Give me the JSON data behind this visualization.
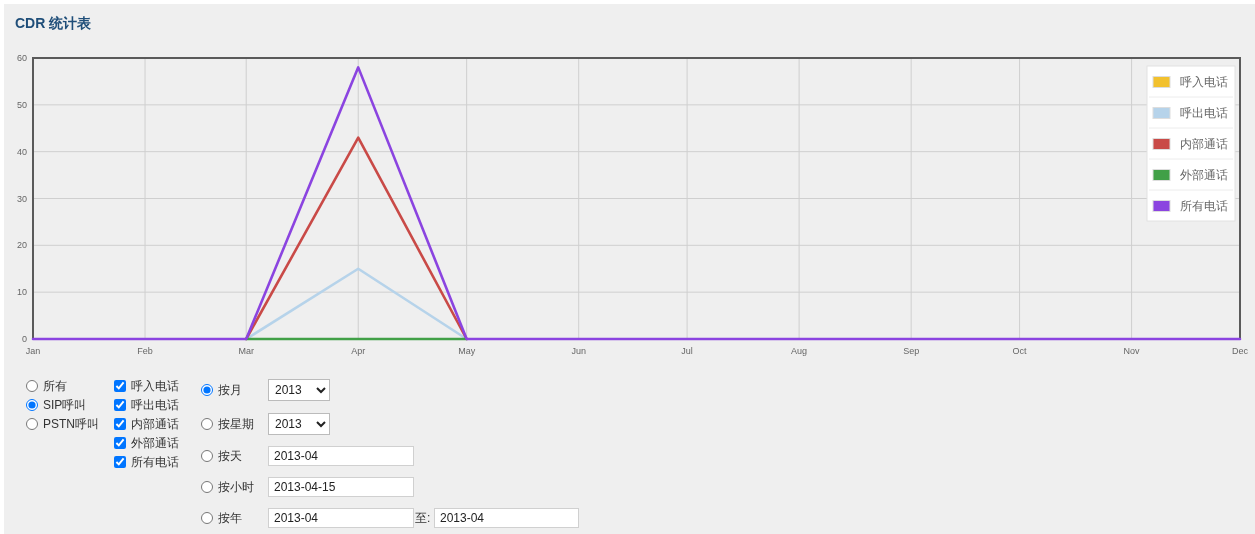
{
  "chart_data": [
    {
      "type": "line",
      "title": "CDR 统计表",
      "x": [
        "--01-01",
        "--02-01",
        "--03-01",
        "--04-01",
        "--05-01",
        "--06-01",
        "--07-01",
        "--08-01",
        "--09-01",
        "--10-01",
        "--11-01",
        "--12-01"
      ],
      "series": [
        {
          "name": "呼入电话",
          "color": "#f2c12e",
          "values": [
            null,
            null,
            null,
            null,
            null,
            null,
            null,
            null,
            null,
            null,
            null,
            null
          ]
        },
        {
          "name": "呼出电话",
          "color": "#b6d3ea",
          "values": [
            null,
            null,
            0,
            15,
            0,
            null,
            null,
            null,
            null,
            null,
            null,
            null
          ]
        },
        {
          "name": "内部通话",
          "color": "#c94a47",
          "values": [
            null,
            null,
            0,
            43,
            0,
            null,
            null,
            null,
            null,
            null,
            null,
            null
          ]
        },
        {
          "name": "外部通话",
          "color": "#41a047",
          "values": [
            null,
            null,
            0,
            0,
            0,
            null,
            null,
            null,
            null,
            null,
            null,
            null
          ]
        },
        {
          "name": "所有电话",
          "color": "#8b44e0",
          "values": [
            0,
            0,
            0,
            58,
            0,
            0,
            0,
            0,
            0,
            0,
            0,
            0
          ]
        }
      ],
      "xlim": [
        "--01-01",
        "--12-01"
      ],
      "xticks": [
        {
          "value": "--01-01",
          "label": "Jan"
        },
        {
          "value": "--02-01",
          "label": "Feb"
        },
        {
          "value": "--03-01",
          "label": "Mar"
        },
        {
          "value": "--04-01",
          "label": "Apr"
        },
        {
          "value": "--05-01",
          "label": "May"
        },
        {
          "value": "--06-01",
          "label": "Jun"
        },
        {
          "value": "--07-01",
          "label": "Jul"
        },
        {
          "value": "--08-01",
          "label": "Aug"
        },
        {
          "value": "--09-01",
          "label": "Sep"
        },
        {
          "value": "--10-01",
          "label": "Oct"
        },
        {
          "value": "--11-01",
          "label": "Nov"
        },
        {
          "value": "--12-01",
          "label": "Dec"
        }
      ],
      "ylim": [
        0,
        60
      ],
      "yticks": [
        0,
        10,
        20,
        30,
        40,
        50,
        60
      ],
      "grid": true,
      "legend": "top right",
      "line_style": "solid"
    },
    {
      "type": "other",
      "annotations": [
        "所有",
        "SIP呼叫",
        "PSTN呼叫",
        "呼入电话",
        "呼出电话",
        "内部通话",
        "外部通话",
        "所有电话",
        "按月",
        "2013",
        "按星期",
        "2013",
        "按天",
        "2013-04",
        "按小时",
        "2013-04-15",
        "按年",
        "2013-04",
        "至:",
        "2013-04"
      ]
    }
  ]
}
